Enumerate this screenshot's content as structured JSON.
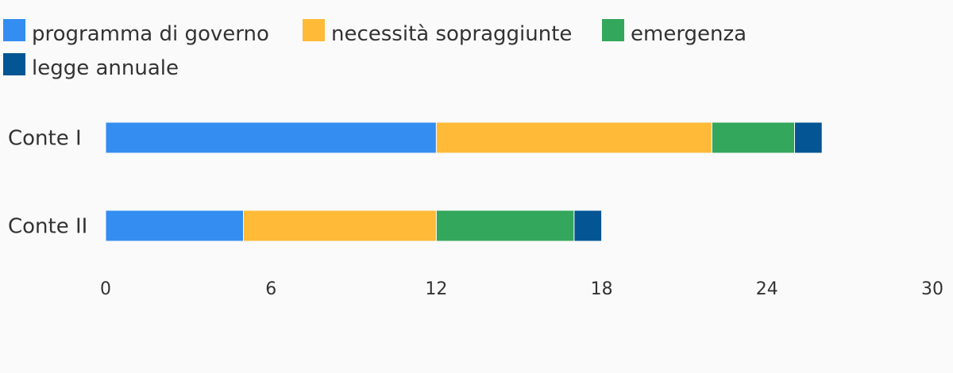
{
  "chart_data": {
    "type": "bar",
    "orientation": "horizontal",
    "stacked": true,
    "categories": [
      "Conte I",
      "Conte II"
    ],
    "series": [
      {
        "name": "programma di governo",
        "color": "#348DF0",
        "values": [
          12,
          5
        ]
      },
      {
        "name": "necessità sopraggiunte",
        "color": "#FFBA38",
        "values": [
          10,
          7
        ]
      },
      {
        "name": "emergenza",
        "color": "#33A75B",
        "values": [
          3,
          5
        ]
      },
      {
        "name": "legge annuale",
        "color": "#035594",
        "values": [
          1,
          1
        ]
      }
    ],
    "xlim": [
      0,
      30
    ],
    "xticks": [
      "0",
      "6",
      "12",
      "18",
      "24",
      "30"
    ],
    "legend": "top-left",
    "grid": false
  }
}
